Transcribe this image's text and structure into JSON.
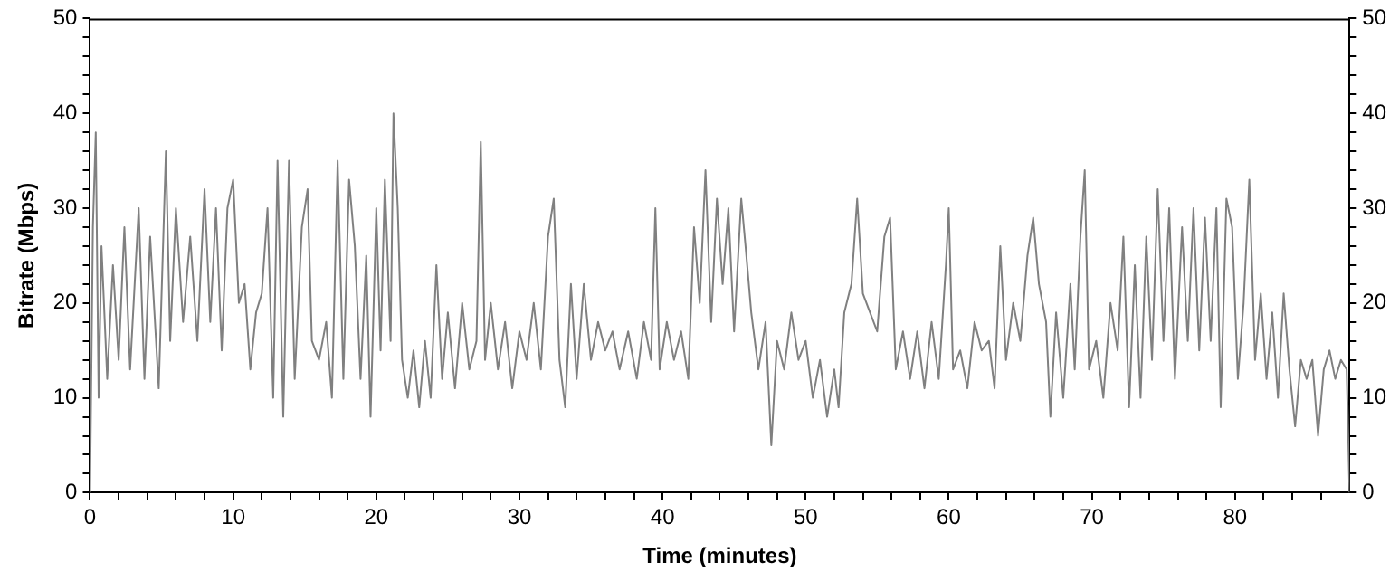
{
  "chart_data": {
    "type": "line",
    "xlabel": "Time (minutes)",
    "ylabel": "Bitrate (Mbps)",
    "xlim": [
      0,
      88
    ],
    "ylim": [
      0,
      50
    ],
    "y2lim": [
      0,
      50
    ],
    "xticks": [
      0,
      {
        "value": 2,
        "label": null
      },
      {
        "value": 4,
        "label": null
      },
      {
        "value": 6,
        "label": null
      },
      {
        "value": 8,
        "label": null
      },
      10,
      {
        "value": 12,
        "label": null
      },
      {
        "value": 14,
        "label": null
      },
      {
        "value": 16,
        "label": null
      },
      {
        "value": 18,
        "label": null
      },
      20,
      {
        "value": 22,
        "label": null
      },
      {
        "value": 24,
        "label": null
      },
      {
        "value": 26,
        "label": null
      },
      {
        "value": 28,
        "label": null
      },
      30,
      {
        "value": 32,
        "label": null
      },
      {
        "value": 34,
        "label": null
      },
      {
        "value": 36,
        "label": null
      },
      {
        "value": 38,
        "label": null
      },
      40,
      {
        "value": 42,
        "label": null
      },
      {
        "value": 44,
        "label": null
      },
      {
        "value": 46,
        "label": null
      },
      {
        "value": 48,
        "label": null
      },
      50,
      {
        "value": 52,
        "label": null
      },
      {
        "value": 54,
        "label": null
      },
      {
        "value": 56,
        "label": null
      },
      {
        "value": 58,
        "label": null
      },
      60,
      {
        "value": 62,
        "label": null
      },
      {
        "value": 64,
        "label": null
      },
      {
        "value": 66,
        "label": null
      },
      {
        "value": 68,
        "label": null
      },
      70,
      {
        "value": 72,
        "label": null
      },
      {
        "value": 74,
        "label": null
      },
      {
        "value": 76,
        "label": null
      },
      {
        "value": 78,
        "label": null
      },
      80,
      {
        "value": 82,
        "label": null
      },
      {
        "value": 84,
        "label": null
      },
      {
        "value": 86,
        "label": null
      }
    ],
    "yticks": [
      0,
      {
        "value": 2,
        "label": null
      },
      {
        "value": 4,
        "label": null
      },
      {
        "value": 6,
        "label": null
      },
      {
        "value": 8,
        "label": null
      },
      10,
      {
        "value": 12,
        "label": null
      },
      {
        "value": 14,
        "label": null
      },
      {
        "value": 16,
        "label": null
      },
      {
        "value": 18,
        "label": null
      },
      20,
      {
        "value": 22,
        "label": null
      },
      {
        "value": 24,
        "label": null
      },
      {
        "value": 26,
        "label": null
      },
      {
        "value": 28,
        "label": null
      },
      30,
      {
        "value": 32,
        "label": null
      },
      {
        "value": 34,
        "label": null
      },
      {
        "value": 36,
        "label": null
      },
      {
        "value": 38,
        "label": null
      },
      40,
      {
        "value": 42,
        "label": null
      },
      {
        "value": 44,
        "label": null
      },
      {
        "value": 46,
        "label": null
      },
      {
        "value": 48,
        "label": null
      },
      50
    ],
    "y2ticks": [
      0,
      {
        "value": 2,
        "label": null
      },
      {
        "value": 4,
        "label": null
      },
      {
        "value": 6,
        "label": null
      },
      {
        "value": 8,
        "label": null
      },
      10,
      {
        "value": 12,
        "label": null
      },
      {
        "value": 14,
        "label": null
      },
      {
        "value": 16,
        "label": null
      },
      {
        "value": 18,
        "label": null
      },
      20,
      {
        "value": 22,
        "label": null
      },
      {
        "value": 24,
        "label": null
      },
      {
        "value": 26,
        "label": null
      },
      {
        "value": 28,
        "label": null
      },
      30,
      {
        "value": 32,
        "label": null
      },
      {
        "value": 34,
        "label": null
      },
      {
        "value": 36,
        "label": null
      },
      {
        "value": 38,
        "label": null
      },
      40,
      {
        "value": 42,
        "label": null
      },
      {
        "value": 44,
        "label": null
      },
      {
        "value": 46,
        "label": null
      },
      {
        "value": 48,
        "label": null
      },
      50
    ],
    "series": [
      {
        "color": "#808080",
        "x": [
          0,
          0.2,
          0.4,
          0.6,
          0.8,
          1.2,
          1.6,
          2.0,
          2.4,
          2.8,
          3.4,
          3.8,
          4.2,
          4.8,
          5.3,
          5.6,
          6.0,
          6.5,
          7.0,
          7.5,
          8.0,
          8.4,
          8.8,
          9.2,
          9.6,
          10.0,
          10.4,
          10.8,
          11.2,
          11.6,
          12.0,
          12.4,
          12.8,
          13.1,
          13.5,
          13.9,
          14.3,
          14.8,
          15.2,
          15.5,
          16.0,
          16.5,
          16.9,
          17.3,
          17.7,
          18.1,
          18.5,
          18.9,
          19.3,
          19.6,
          20.0,
          20.3,
          20.6,
          21.0,
          21.2,
          21.5,
          21.8,
          22.2,
          22.6,
          23.0,
          23.4,
          23.8,
          24.2,
          24.6,
          25.0,
          25.5,
          26.0,
          26.5,
          27.0,
          27.3,
          27.6,
          28.0,
          28.5,
          29.0,
          29.5,
          30.0,
          30.5,
          31.0,
          31.5,
          32.0,
          32.4,
          32.8,
          33.2,
          33.6,
          34.0,
          34.5,
          35.0,
          35.5,
          36.0,
          36.5,
          37.0,
          37.6,
          38.2,
          38.7,
          39.2,
          39.5,
          39.8,
          40.3,
          40.8,
          41.3,
          41.8,
          42.2,
          42.6,
          43.0,
          43.4,
          43.8,
          44.2,
          44.6,
          45.0,
          45.5,
          45.8,
          46.2,
          46.7,
          47.2,
          47.6,
          48.0,
          48.5,
          49.0,
          49.5,
          50.0,
          50.5,
          51.0,
          51.5,
          52.0,
          52.3,
          52.7,
          53.2,
          53.6,
          54.0,
          54.5,
          55.0,
          55.5,
          55.9,
          56.3,
          56.8,
          57.3,
          57.8,
          58.3,
          58.8,
          59.3,
          59.8,
          60.0,
          60.3,
          60.8,
          61.3,
          61.8,
          62.3,
          62.8,
          63.2,
          63.6,
          64.0,
          64.5,
          65.0,
          65.5,
          65.9,
          66.3,
          66.8,
          67.1,
          67.5,
          68.0,
          68.5,
          68.8,
          69.2,
          69.5,
          69.8,
          70.3,
          70.8,
          71.3,
          71.8,
          72.2,
          72.6,
          73.0,
          73.4,
          73.8,
          74.2,
          74.6,
          75.0,
          75.4,
          75.8,
          76.3,
          76.7,
          77.1,
          77.5,
          77.9,
          78.3,
          78.7,
          79.0,
          79.4,
          79.8,
          80.2,
          80.6,
          81.0,
          81.4,
          81.8,
          82.2,
          82.6,
          83.0,
          83.4,
          83.8,
          84.2,
          84.6,
          85.0,
          85.4,
          85.8,
          86.2,
          86.6,
          87.0,
          87.4,
          87.8,
          88.0
        ],
        "values": [
          0,
          28,
          38,
          10,
          26,
          12,
          24,
          14,
          28,
          13,
          30,
          12,
          27,
          11,
          36,
          16,
          30,
          18,
          27,
          16,
          32,
          18,
          30,
          15,
          30,
          33,
          20,
          22,
          13,
          19,
          21,
          30,
          10,
          35,
          8,
          35,
          12,
          28,
          32,
          16,
          14,
          18,
          10,
          35,
          12,
          33,
          26,
          12,
          25,
          8,
          30,
          15,
          33,
          16,
          40,
          30,
          14,
          10,
          15,
          9,
          16,
          10,
          24,
          12,
          19,
          11,
          20,
          13,
          16,
          37,
          14,
          20,
          13,
          18,
          11,
          17,
          14,
          20,
          13,
          27,
          31,
          14,
          9,
          22,
          12,
          22,
          14,
          18,
          15,
          17,
          13,
          17,
          12,
          18,
          14,
          30,
          13,
          18,
          14,
          17,
          12,
          28,
          20,
          34,
          18,
          31,
          22,
          30,
          17,
          31,
          26,
          19,
          13,
          18,
          5,
          16,
          13,
          19,
          14,
          16,
          10,
          14,
          8,
          13,
          9,
          19,
          22,
          31,
          21,
          19,
          17,
          27,
          29,
          13,
          17,
          12,
          17,
          11,
          18,
          12,
          24,
          30,
          13,
          15,
          11,
          18,
          15,
          16,
          11,
          26,
          14,
          20,
          16,
          25,
          29,
          22,
          18,
          8,
          19,
          10,
          22,
          13,
          27,
          34,
          13,
          16,
          10,
          20,
          15,
          27,
          9,
          24,
          10,
          27,
          14,
          32,
          16,
          30,
          12,
          28,
          16,
          30,
          15,
          29,
          16,
          30,
          9,
          31,
          28,
          12,
          20,
          33,
          14,
          21,
          12,
          19,
          10,
          21,
          13,
          7,
          14,
          12,
          14,
          6,
          13,
          15,
          12,
          14,
          13,
          0
        ]
      }
    ]
  }
}
